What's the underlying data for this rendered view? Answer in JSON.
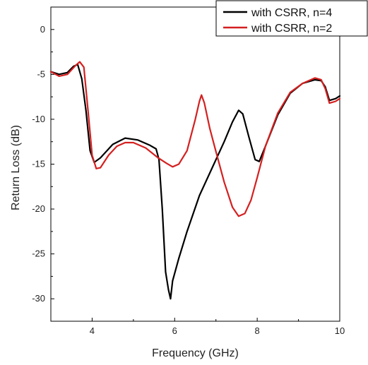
{
  "chart_data": {
    "type": "line",
    "xlabel": "Frequency (GHz)",
    "ylabel": "Return Loss (dB)",
    "xlim": [
      3,
      10
    ],
    "ylim": [
      -32.5,
      2.5
    ],
    "xticks": [
      4,
      6,
      8,
      10
    ],
    "yticks": [
      0,
      -5,
      -10,
      -15,
      -20,
      -25,
      -30
    ],
    "grid": false,
    "legend_position": "top-right",
    "series": [
      {
        "name": "with CSRR, n=4",
        "color": "#000000",
        "x": [
          3.0,
          3.2,
          3.4,
          3.55,
          3.65,
          3.75,
          3.85,
          3.95,
          4.05,
          4.2,
          4.5,
          4.8,
          5.1,
          5.4,
          5.55,
          5.62,
          5.7,
          5.78,
          5.85,
          5.9,
          5.95,
          6.1,
          6.3,
          6.6,
          6.9,
          7.2,
          7.4,
          7.55,
          7.65,
          7.8,
          7.95,
          8.05,
          8.2,
          8.5,
          8.8,
          9.1,
          9.4,
          9.55,
          9.65,
          9.75,
          9.9,
          10.0
        ],
        "y": [
          -4.7,
          -5.0,
          -4.8,
          -4.1,
          -3.9,
          -5.5,
          -9.0,
          -13.5,
          -14.8,
          -14.3,
          -12.8,
          -12.1,
          -12.3,
          -12.9,
          -13.3,
          -14.5,
          -20.0,
          -27.0,
          -29.0,
          -30.0,
          -28.0,
          -25.5,
          -22.5,
          -18.5,
          -15.5,
          -12.5,
          -10.3,
          -9.0,
          -9.4,
          -12.0,
          -14.5,
          -14.7,
          -13.0,
          -9.5,
          -7.1,
          -6.0,
          -5.6,
          -5.7,
          -6.4,
          -7.9,
          -7.7,
          -7.4
        ]
      },
      {
        "name": "with CSRR, n=2",
        "color": "#d42020",
        "x": [
          3.0,
          3.2,
          3.4,
          3.6,
          3.7,
          3.8,
          3.9,
          4.0,
          4.1,
          4.2,
          4.4,
          4.6,
          4.8,
          5.0,
          5.3,
          5.6,
          5.8,
          5.95,
          6.1,
          6.3,
          6.5,
          6.6,
          6.65,
          6.72,
          6.85,
          7.0,
          7.2,
          7.4,
          7.55,
          7.7,
          7.85,
          8.0,
          8.2,
          8.5,
          8.8,
          9.1,
          9.4,
          9.55,
          9.65,
          9.75,
          9.9,
          10.0
        ],
        "y": [
          -4.7,
          -5.2,
          -5.0,
          -4.0,
          -3.6,
          -4.2,
          -9.0,
          -14.0,
          -15.5,
          -15.4,
          -14.0,
          -13.0,
          -12.6,
          -12.6,
          -13.2,
          -14.3,
          -14.9,
          -15.3,
          -15.0,
          -13.5,
          -10.0,
          -8.0,
          -7.3,
          -8.2,
          -11.0,
          -13.6,
          -17.0,
          -19.8,
          -20.8,
          -20.5,
          -19.0,
          -16.5,
          -13.0,
          -9.3,
          -7.0,
          -6.0,
          -5.4,
          -5.6,
          -6.6,
          -8.2,
          -8.0,
          -7.7
        ]
      }
    ]
  }
}
